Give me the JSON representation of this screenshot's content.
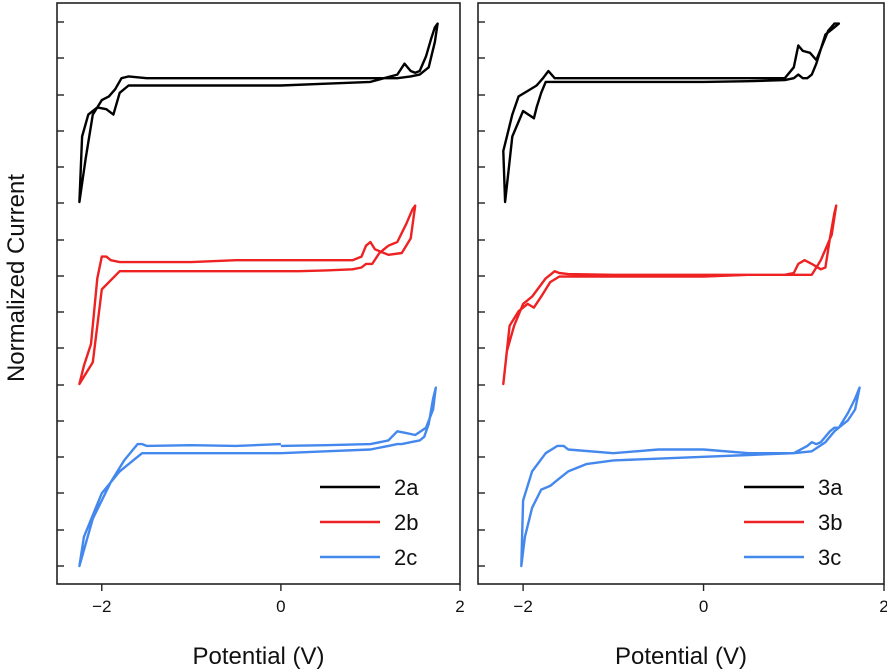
{
  "ylabel": "Normalized Current",
  "chart_data": [
    {
      "type": "line",
      "panel": "left",
      "xlabel": "Potential (V)",
      "ylabel": "Normalized Current",
      "xlim": [
        -2.5,
        2
      ],
      "xticks": [
        -2,
        0,
        2
      ],
      "grid": false,
      "legend_position": "bottom-right",
      "series": [
        {
          "name": "2a",
          "color": "#000000",
          "offset": 2,
          "x": [
            0,
            -0.5,
            -1.0,
            -1.5,
            -1.7,
            -1.78,
            -1.85,
            -1.92,
            -2.0,
            -2.1,
            -2.18,
            -2.25,
            -2.22,
            -2.15,
            -2.05,
            -1.95,
            -1.87,
            -1.8,
            -1.7,
            -1.5,
            -1.0,
            0,
            0.5,
            1.0,
            1.3,
            1.38,
            1.45,
            1.5,
            1.55,
            1.62,
            1.68,
            1.72,
            1.75,
            1.72,
            1.65,
            1.55,
            1.45,
            1.3,
            1.0,
            0.5,
            0
          ],
          "y": [
            0.84,
            0.84,
            0.84,
            0.84,
            0.845,
            0.84,
            0.81,
            0.79,
            0.78,
            0.74,
            0.62,
            0.5,
            0.68,
            0.74,
            0.76,
            0.755,
            0.74,
            0.8,
            0.82,
            0.82,
            0.82,
            0.82,
            0.825,
            0.83,
            0.85,
            0.88,
            0.86,
            0.855,
            0.86,
            0.9,
            0.95,
            0.98,
            0.99,
            0.94,
            0.87,
            0.85,
            0.845,
            0.84,
            0.84,
            0.84,
            0.84
          ]
        },
        {
          "name": "2b",
          "color": "#ee2222",
          "offset": 1,
          "x": [
            0,
            -0.5,
            -1.0,
            -1.5,
            -1.8,
            -1.9,
            -1.95,
            -2.0,
            -2.05,
            -2.12,
            -2.2,
            -2.25,
            -2.1,
            -2.0,
            -1.8,
            -1.5,
            -1.0,
            0,
            0.2,
            0.5,
            0.8,
            0.9,
            0.95,
            1.02,
            1.1,
            1.2,
            1.3,
            1.4,
            1.47,
            1.5,
            1.45,
            1.35,
            1.2,
            1.05,
            1.0,
            0.95,
            0.9,
            0.8,
            0.5,
            0
          ],
          "y": [
            0.84,
            0.84,
            0.835,
            0.835,
            0.835,
            0.84,
            0.85,
            0.85,
            0.79,
            0.61,
            0.55,
            0.5,
            0.56,
            0.76,
            0.81,
            0.81,
            0.81,
            0.81,
            0.81,
            0.812,
            0.815,
            0.82,
            0.83,
            0.83,
            0.86,
            0.88,
            0.89,
            0.94,
            0.98,
            0.99,
            0.9,
            0.86,
            0.855,
            0.87,
            0.89,
            0.88,
            0.85,
            0.84,
            0.84,
            0.84
          ]
        },
        {
          "name": "2c",
          "color": "#4488ee",
          "offset": 0,
          "x": [
            0,
            -0.5,
            -1.0,
            -1.5,
            -1.55,
            -1.6,
            -1.65,
            -1.75,
            -1.9,
            -2.1,
            -2.25,
            -2.2,
            -2.0,
            -1.8,
            -1.65,
            -1.55,
            -1.45,
            -1.0,
            0,
            0.5,
            1.0,
            1.2,
            1.3,
            1.35,
            1.45,
            1.55,
            1.6,
            1.65,
            1.7,
            1.73,
            1.7,
            1.62,
            1.5,
            1.4,
            1.3,
            1.2,
            1.0,
            0.5,
            0
          ],
          "y": [
            0.835,
            0.83,
            0.832,
            0.83,
            0.835,
            0.835,
            0.82,
            0.79,
            0.73,
            0.63,
            0.5,
            0.58,
            0.7,
            0.76,
            0.79,
            0.81,
            0.81,
            0.81,
            0.81,
            0.815,
            0.82,
            0.83,
            0.835,
            0.835,
            0.84,
            0.845,
            0.855,
            0.89,
            0.96,
            0.99,
            0.93,
            0.88,
            0.86,
            0.865,
            0.87,
            0.845,
            0.835,
            0.832,
            0.83
          ]
        }
      ]
    },
    {
      "type": "line",
      "panel": "right",
      "xlabel": "Potential (V)",
      "xlim": [
        -2.5,
        2
      ],
      "xticks": [
        -2,
        0,
        2
      ],
      "grid": false,
      "legend_position": "bottom-right",
      "series": [
        {
          "name": "3a",
          "color": "#000000",
          "offset": 2,
          "x": [
            0,
            -0.5,
            -1.0,
            -1.5,
            -1.65,
            -1.72,
            -1.78,
            -1.85,
            -1.95,
            -2.05,
            -2.12,
            -2.22,
            -2.2,
            -2.12,
            -2.0,
            -1.88,
            -1.85,
            -1.8,
            -1.75,
            -1.6,
            -1.5,
            -1.0,
            0,
            0.5,
            0.9,
            1.0,
            1.05,
            1.1,
            1.15,
            1.2,
            1.25,
            1.3,
            1.38,
            1.45,
            1.5,
            1.45,
            1.35,
            1.3,
            1.25,
            1.18,
            1.1,
            1.05,
            1.0,
            0.9,
            0.5,
            0
          ],
          "y": [
            0.84,
            0.84,
            0.84,
            0.84,
            0.84,
            0.86,
            0.84,
            0.82,
            0.805,
            0.79,
            0.74,
            0.64,
            0.5,
            0.68,
            0.75,
            0.73,
            0.76,
            0.8,
            0.83,
            0.83,
            0.83,
            0.83,
            0.83,
            0.832,
            0.835,
            0.84,
            0.85,
            0.84,
            0.84,
            0.85,
            0.88,
            0.92,
            0.97,
            0.99,
            0.99,
            0.98,
            0.96,
            0.92,
            0.89,
            0.91,
            0.915,
            0.93,
            0.87,
            0.84,
            0.84,
            0.84
          ]
        },
        {
          "name": "3b",
          "color": "#ee2222",
          "offset": 1,
          "x": [
            0,
            -0.5,
            -1.0,
            -1.5,
            -1.6,
            -1.65,
            -1.75,
            -1.9,
            -2.0,
            -2.1,
            -2.18,
            -2.22,
            -2.15,
            -2.05,
            -1.95,
            -1.88,
            -1.8,
            -1.7,
            -1.6,
            -1.5,
            -1.0,
            0,
            0.5,
            0.9,
            1.0,
            1.05,
            1.12,
            1.2,
            1.3,
            1.35,
            1.4,
            1.45,
            1.47,
            1.42,
            1.3,
            1.2,
            1.1,
            1.0,
            0.9,
            0.5,
            0
          ],
          "y": [
            0.8,
            0.8,
            0.8,
            0.802,
            0.805,
            0.81,
            0.79,
            0.74,
            0.72,
            0.66,
            0.59,
            0.5,
            0.66,
            0.7,
            0.72,
            0.71,
            0.74,
            0.78,
            0.795,
            0.795,
            0.795,
            0.795,
            0.8,
            0.8,
            0.805,
            0.83,
            0.84,
            0.83,
            0.815,
            0.82,
            0.9,
            0.97,
            0.99,
            0.91,
            0.84,
            0.8,
            0.8,
            0.8,
            0.8,
            0.8,
            0.8
          ]
        },
        {
          "name": "3c",
          "color": "#4488ee",
          "offset": 0,
          "x": [
            0,
            -0.5,
            -1.0,
            -1.5,
            -1.55,
            -1.62,
            -1.75,
            -1.9,
            -2.0,
            -2.02,
            -1.98,
            -1.9,
            -1.8,
            -1.7,
            -1.6,
            -1.5,
            -1.3,
            -1.0,
            0,
            0.5,
            1.0,
            1.15,
            1.2,
            1.25,
            1.3,
            1.4,
            1.45,
            1.5,
            1.55,
            1.6,
            1.68,
            1.73,
            1.68,
            1.6,
            1.55,
            1.45,
            1.35,
            1.2,
            1.0,
            0.5,
            0
          ],
          "y": [
            0.82,
            0.82,
            0.81,
            0.82,
            0.83,
            0.83,
            0.81,
            0.76,
            0.68,
            0.5,
            0.58,
            0.66,
            0.71,
            0.72,
            0.74,
            0.76,
            0.78,
            0.79,
            0.8,
            0.805,
            0.81,
            0.83,
            0.84,
            0.835,
            0.84,
            0.87,
            0.88,
            0.88,
            0.9,
            0.92,
            0.96,
            0.99,
            0.93,
            0.9,
            0.89,
            0.87,
            0.84,
            0.815,
            0.81,
            0.81,
            0.82
          ]
        }
      ]
    }
  ]
}
